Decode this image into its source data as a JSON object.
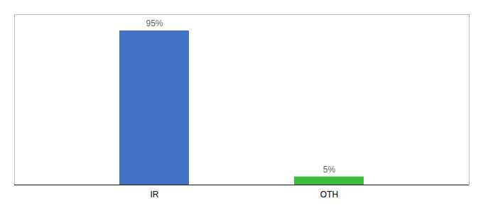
{
  "chart_data": {
    "type": "bar",
    "categories": [
      "IR",
      "OTH"
    ],
    "values": [
      95,
      5
    ],
    "value_labels": [
      "95%",
      "5%"
    ],
    "colors": [
      "#4472c4",
      "#3dbb3d"
    ],
    "ylim": [
      0,
      105
    ],
    "data_labels": true,
    "tick_labels": "x"
  }
}
